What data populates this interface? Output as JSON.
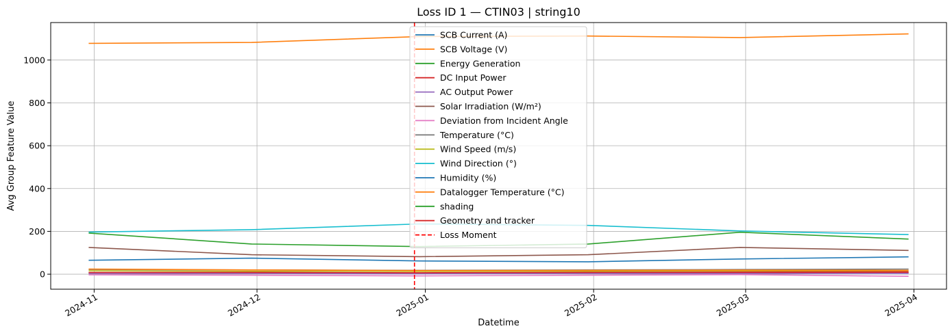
{
  "chart_data": {
    "type": "line",
    "title": "Loss ID 1 — CTIN03 | string10",
    "xlabel": "Datetime",
    "ylabel": "Avg Group Feature Value",
    "x": [
      "2024-10-31",
      "2024-11-30",
      "2024-12-31",
      "2025-01-31",
      "2025-02-28",
      "2025-03-31"
    ],
    "xlim": [
      "2024-10-24",
      "2025-04-07"
    ],
    "ylim": [
      -70,
      1175
    ],
    "x_ticks": [
      {
        "date": "2024-11-01",
        "label": "2024-11"
      },
      {
        "date": "2024-12-01",
        "label": "2024-12"
      },
      {
        "date": "2025-01-01",
        "label": "2025-01"
      },
      {
        "date": "2025-02-01",
        "label": "2025-02"
      },
      {
        "date": "2025-03-01",
        "label": "2025-03"
      },
      {
        "date": "2025-04-01",
        "label": "2025-04"
      }
    ],
    "y_ticks": [
      0,
      200,
      400,
      600,
      800,
      1000
    ],
    "grid": true,
    "legend_position": "top-center",
    "series": [
      {
        "name": "SCB Current (A)",
        "color": "#1f77b4",
        "values": [
          6,
          8,
          4,
          6,
          7,
          8
        ]
      },
      {
        "name": "SCB Voltage (V)",
        "color": "#ff7f0e",
        "values": [
          1078,
          1082,
          1110,
          1112,
          1105,
          1122
        ]
      },
      {
        "name": "Energy Generation",
        "color": "#2ca02c",
        "values": [
          6,
          5,
          4,
          5,
          6,
          6
        ]
      },
      {
        "name": "DC Input Power",
        "color": "#d62728",
        "values": [
          6,
          7,
          5,
          6,
          7,
          8
        ]
      },
      {
        "name": "AC Output Power",
        "color": "#9467bd",
        "values": [
          3,
          3,
          2,
          3,
          3,
          4
        ]
      },
      {
        "name": "Solar Irradiation (W/m²)",
        "color": "#8c564b",
        "values": [
          125,
          91,
          82,
          91,
          125,
          111
        ]
      },
      {
        "name": "Deviation from Incident Angle",
        "color": "#e377c2",
        "values": [
          -3,
          -5,
          -8,
          -5,
          -2,
          -10
        ]
      },
      {
        "name": "Temperature (°C)",
        "color": "#7f7f7f",
        "values": [
          22,
          20,
          18,
          20,
          22,
          24
        ]
      },
      {
        "name": "Wind Speed (m/s)",
        "color": "#bcbd22",
        "values": [
          16,
          14,
          13,
          14,
          15,
          16
        ]
      },
      {
        "name": "Wind Direction (°)",
        "color": "#17becf",
        "values": [
          197,
          208,
          235,
          228,
          202,
          185
        ]
      },
      {
        "name": "Humidity (%)",
        "color": "#1f77b4",
        "values": [
          65,
          75,
          62,
          58,
          71,
          81
        ]
      },
      {
        "name": "Datalogger Temperature (°C)",
        "color": "#ff7f0e",
        "values": [
          24,
          20,
          17,
          18,
          19,
          18
        ]
      },
      {
        "name": "shading",
        "color": "#2ca02c",
        "values": [
          192,
          141,
          129,
          141,
          196,
          164
        ]
      },
      {
        "name": "Geometry and tracker",
        "color": "#d62728",
        "values": [
          8,
          9,
          7,
          9,
          10,
          11
        ]
      }
    ],
    "loss_moment": {
      "name": "Loss Moment",
      "color": "#ff0000",
      "date": "2024-12-30"
    }
  }
}
